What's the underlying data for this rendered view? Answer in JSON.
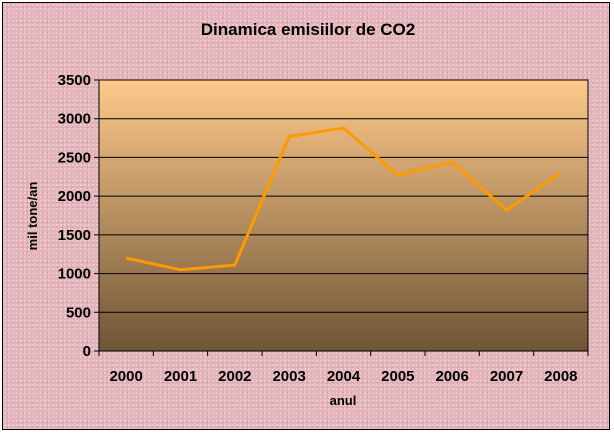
{
  "chart_data": {
    "type": "line",
    "title": "Dinamica emisiilor de CO2",
    "xlabel": "anul",
    "ylabel": "mil tone/an",
    "categories": [
      "2000",
      "2001",
      "2002",
      "2003",
      "2004",
      "2005",
      "2006",
      "2007",
      "2008"
    ],
    "series": [
      {
        "values": [
          1200,
          1050,
          1110,
          2770,
          2880,
          2270,
          2440,
          1820,
          2300
        ],
        "color": "#ff9900"
      }
    ],
    "ylim": [
      0,
      3500
    ],
    "yticks": [
      "0",
      "500",
      "1000",
      "1500",
      "2000",
      "2500",
      "3000",
      "3500"
    ],
    "grid": true,
    "legend": "none",
    "colors": {
      "plot_top": "#fec98a",
      "plot_bottom": "#6e5537",
      "frame_background": "#e4b6bb",
      "line": "#ff9900"
    }
  }
}
